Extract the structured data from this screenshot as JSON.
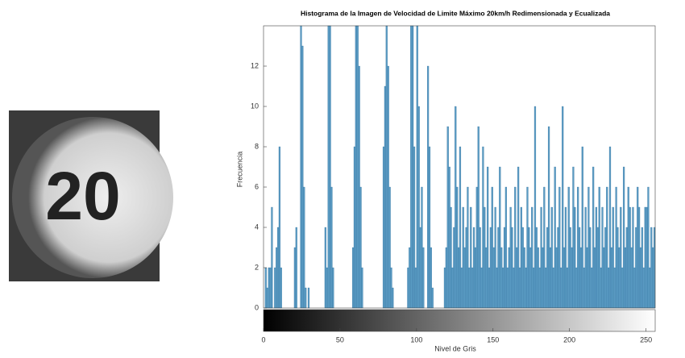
{
  "image": {
    "text": "20"
  },
  "chart_data": {
    "type": "histogram",
    "title": "Histograma de la Imagen de Velocidad de Limite Máximo 20km/h Redimensionada y Ecualizada",
    "x_label": "Nivel de Gris",
    "y_label": "Frecuencia",
    "bins": [
      0,
      1,
      2,
      3,
      4,
      5,
      6,
      7,
      8,
      9,
      10,
      11,
      12,
      13,
      14,
      15,
      16,
      17,
      18,
      19,
      20,
      21,
      22,
      23,
      24,
      25,
      26,
      27,
      28,
      29,
      30,
      31,
      32,
      33,
      34,
      35,
      36,
      37,
      38,
      39,
      40,
      41,
      42,
      43,
      44,
      45,
      46,
      47,
      48,
      49,
      50,
      51,
      52,
      53,
      54,
      55,
      56,
      57,
      58,
      59,
      60,
      61,
      62,
      63,
      64,
      65,
      66,
      67,
      68,
      69,
      70,
      71,
      72,
      73,
      74,
      75,
      76,
      77,
      78,
      79,
      80,
      81,
      82,
      83,
      84,
      85,
      86,
      87,
      88,
      89,
      90,
      91,
      92,
      93,
      94,
      95,
      96,
      97,
      98,
      99,
      100,
      101,
      102,
      103,
      104,
      105,
      106,
      107,
      108,
      109,
      110,
      111,
      112,
      113,
      114,
      115,
      116,
      117,
      118,
      119,
      120,
      121,
      122,
      123,
      124,
      125,
      126,
      127,
      128,
      129,
      130,
      131,
      132,
      133,
      134,
      135,
      136,
      137,
      138,
      139,
      140,
      141,
      142,
      143,
      144,
      145,
      146,
      147,
      148,
      149,
      150,
      151,
      152,
      153,
      154,
      155,
      156,
      157,
      158,
      159,
      160,
      161,
      162,
      163,
      164,
      165,
      166,
      167,
      168,
      169,
      170,
      171,
      172,
      173,
      174,
      175,
      176,
      177,
      178,
      179,
      180,
      181,
      182,
      183,
      184,
      185,
      186,
      187,
      188,
      189,
      190,
      191,
      192,
      193,
      194,
      195,
      196,
      197,
      198,
      199,
      200,
      201,
      202,
      203,
      204,
      205,
      206,
      207,
      208,
      209,
      210,
      211,
      212,
      213,
      214,
      215,
      216,
      217,
      218,
      219,
      220,
      221,
      222,
      223,
      224,
      225,
      226,
      227,
      228,
      229,
      230,
      231,
      232,
      233,
      234,
      235,
      236,
      237,
      238,
      239,
      240,
      241,
      242,
      243,
      244,
      245,
      246,
      247,
      248,
      249,
      250,
      251,
      252,
      253,
      254,
      255,
      256
    ],
    "values": [
      0,
      2,
      1,
      2,
      2,
      5,
      0,
      2,
      3,
      4,
      8,
      2,
      0,
      0,
      0,
      0,
      0,
      0,
      0,
      0,
      3,
      4,
      0,
      0,
      14,
      13,
      6,
      1,
      0,
      1,
      0,
      0,
      0,
      0,
      0,
      0,
      0,
      0,
      0,
      0,
      4,
      2,
      14,
      14,
      6,
      2,
      0,
      0,
      0,
      0,
      0,
      0,
      0,
      0,
      0,
      0,
      0,
      0,
      3,
      8,
      14,
      14,
      12,
      6,
      2,
      0,
      0,
      0,
      0,
      0,
      0,
      0,
      0,
      0,
      0,
      0,
      0,
      0,
      8,
      11,
      14,
      12,
      6,
      2,
      1,
      0,
      0,
      0,
      0,
      0,
      0,
      0,
      0,
      0,
      2,
      3,
      14,
      14,
      8,
      2,
      14,
      10,
      4,
      6,
      3,
      0,
      0,
      12,
      8,
      3,
      1,
      0,
      0,
      0,
      0,
      0,
      0,
      0,
      2,
      3,
      9,
      7,
      5,
      2,
      4,
      10,
      6,
      3,
      8,
      2,
      5,
      3,
      4,
      6,
      2,
      5,
      2,
      4,
      3,
      6,
      9,
      4,
      2,
      8,
      5,
      3,
      7,
      2,
      4,
      6,
      3,
      5,
      2,
      4,
      7,
      3,
      2,
      4,
      6,
      2,
      3,
      5,
      4,
      2,
      6,
      3,
      7,
      2,
      5,
      4,
      3,
      2,
      6,
      4,
      3,
      5,
      2,
      10,
      4,
      3,
      2,
      5,
      3,
      6,
      2,
      4,
      9,
      3,
      5,
      2,
      7,
      3,
      4,
      6,
      2,
      10,
      3,
      5,
      2,
      6,
      4,
      3,
      7,
      5,
      2,
      6,
      4,
      3,
      8,
      2,
      5,
      3,
      6,
      4,
      2,
      7,
      3,
      5,
      4,
      6,
      2,
      5,
      3,
      4,
      6,
      2,
      8,
      3,
      5,
      2,
      6,
      4,
      3,
      5,
      2,
      7,
      3,
      4,
      6,
      5,
      3,
      5,
      2,
      4,
      6,
      5,
      3,
      4,
      2,
      5,
      5,
      6,
      2,
      4,
      3,
      4
    ],
    "color": "#5b9cc4",
    "xlim": [
      0,
      256
    ],
    "ylim": [
      0,
      14
    ],
    "xticks": [
      0,
      50,
      100,
      150,
      200,
      250
    ],
    "yticks": [
      0,
      2,
      4,
      6,
      8,
      10,
      12
    ]
  }
}
